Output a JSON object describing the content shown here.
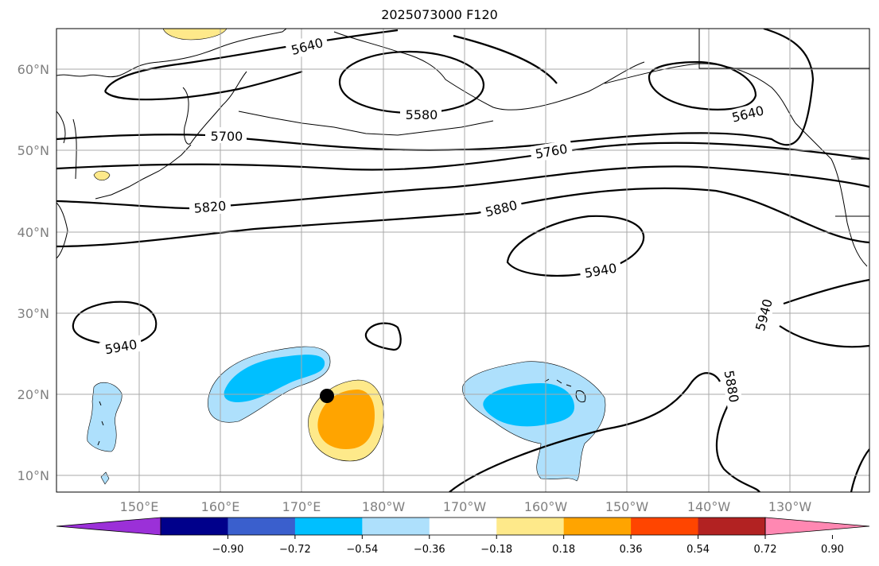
{
  "title": "2025073000 F120",
  "axes": {
    "lat_labels": [
      "60°N",
      "50°N",
      "40°N",
      "30°N",
      "20°N",
      "10°N"
    ],
    "lon_labels": [
      "150°E",
      "160°E",
      "170°E",
      "180°W",
      "170°W",
      "160°W",
      "150°W",
      "140°W",
      "130°W"
    ]
  },
  "contours": {
    "labels": [
      "5640",
      "5580",
      "5700",
      "5760",
      "5820",
      "5880",
      "5640",
      "5940",
      "5940",
      "5940",
      "5880"
    ],
    "color": "#000000"
  },
  "shading": {
    "colors": {
      "strong_negative": "#00bfff",
      "weak_negative": "#aee0fc",
      "weak_positive": "#fee98a",
      "strong_positive": "#ffa400"
    }
  },
  "colorbar": {
    "ticks": [
      "−0.90",
      "−0.72",
      "−0.54",
      "−0.36",
      "−0.18",
      "0.18",
      "0.36",
      "0.54",
      "0.72",
      "0.90"
    ],
    "colors": [
      "#9b30d8",
      "#00008b",
      "#3a5fcd",
      "#00bfff",
      "#aee0fc",
      "#ffffff",
      "#fee98a",
      "#ffa400",
      "#ff4500",
      "#b22222",
      "#ff88b2"
    ]
  },
  "marker": {
    "name": "storm-center-dot",
    "color": "#000000"
  }
}
